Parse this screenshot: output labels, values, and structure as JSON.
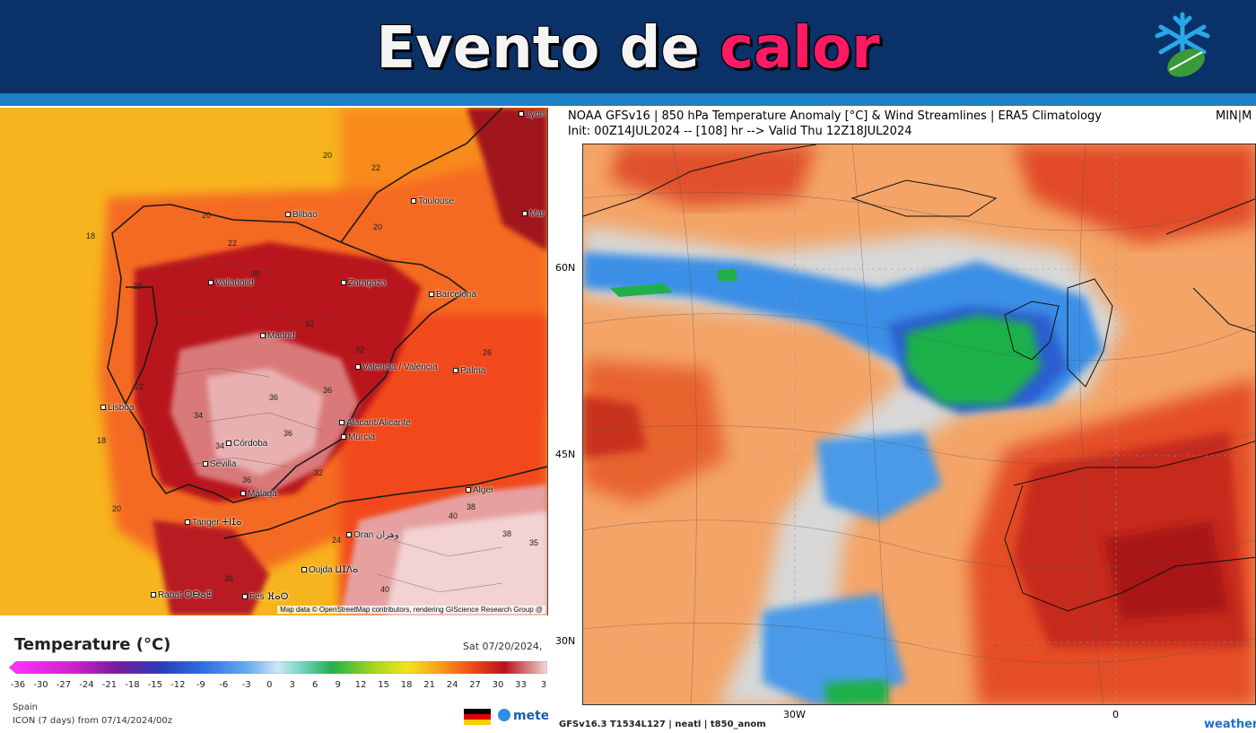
{
  "header": {
    "title_part1": "Evento de",
    "title_part2": "calor",
    "logo_icon": "snowflake-leaf-icon"
  },
  "left_map": {
    "cities": [
      {
        "name": "Bilbao"
      },
      {
        "name": "Toulouse"
      },
      {
        "name": "Valladolid"
      },
      {
        "name": "Zaragoza"
      },
      {
        "name": "Barcelona"
      },
      {
        "name": "Madrid"
      },
      {
        "name": "Valencia / València"
      },
      {
        "name": "Palma"
      },
      {
        "name": "Lisboa"
      },
      {
        "name": "Alacant/Alicante"
      },
      {
        "name": "Murcia"
      },
      {
        "name": "Córdoba"
      },
      {
        "name": "Sevilla"
      },
      {
        "name": "Málaga"
      },
      {
        "name": "Tanger ⵜⵏⵊⴰ"
      },
      {
        "name": "Alger"
      },
      {
        "name": "Oran وهران"
      },
      {
        "name": "Oujda ⵡⵊⴷⴰ"
      },
      {
        "name": "Rabat ⵔⴱⴰⵟ"
      },
      {
        "name": "Fès ⴼⴰⵙ"
      },
      {
        "name": "Lyon"
      },
      {
        "name": "Mar"
      }
    ],
    "values": [
      "20",
      "22",
      "20",
      "18",
      "22",
      "20",
      "22",
      "30",
      "32",
      "34",
      "36",
      "36",
      "34",
      "36",
      "32",
      "18",
      "20",
      "36",
      "26",
      "40",
      "40",
      "35",
      "24",
      "38",
      "38",
      "36",
      "22",
      "32"
    ],
    "attribution": "Map data © OpenStreetMap contributors, rendering GIScience Research Group @"
  },
  "legend": {
    "title": "Temperature (°C)",
    "date": "Sat 07/20/2024,",
    "ticks": [
      "-36",
      "-30",
      "-27",
      "-24",
      "-21",
      "-18",
      "-15",
      "-12",
      "-9",
      "-6",
      "-3",
      "0",
      "3",
      "6",
      "9",
      "12",
      "15",
      "18",
      "21",
      "24",
      "27",
      "30",
      "33",
      "3"
    ],
    "region": "Spain",
    "model": "ICON (7 days) from  07/14/2024/00z",
    "brand": "mete",
    "flag_colors": [
      "#000000",
      "#dd0000",
      "#ffce00"
    ]
  },
  "right_map": {
    "title": "NOAA GFSv16 | 850 hPa Temperature Anomaly [°C] & Wind Streamlines | ERA5 Climatology",
    "init": "Init: 00Z14JUL2024 -- [108] hr --> Valid Thu 12Z18JUL2024",
    "corner": "MIN|M",
    "lat_labels": [
      "60N",
      "45N",
      "30N"
    ],
    "lon_labels": [
      "30W",
      "0"
    ],
    "footer": "GFSv16.3 T1534L127 | neatl | t850_anom",
    "brand": "weather"
  }
}
